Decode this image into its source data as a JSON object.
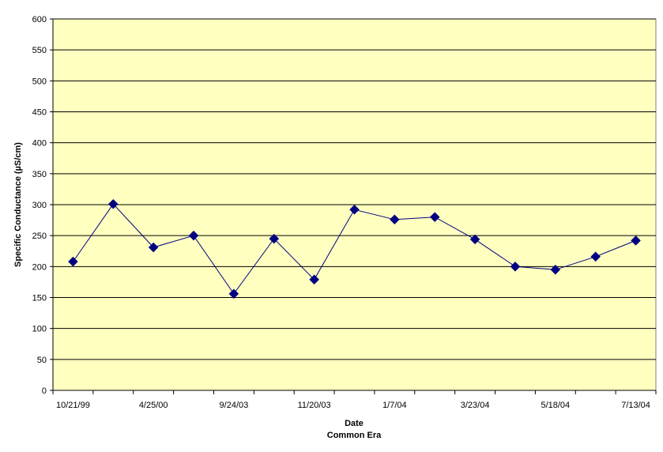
{
  "chart_data": {
    "type": "line",
    "xlabel": "Date",
    "xlabel_sub": "Common Era",
    "ylabel": "Specific Conductance (µS/cm)",
    "ylim": [
      0,
      600
    ],
    "y_ticks": [
      0,
      50,
      100,
      150,
      200,
      250,
      300,
      350,
      400,
      450,
      500,
      550,
      600
    ],
    "x_tick_labels": [
      "10/21/99",
      "4/25/00",
      "9/24/03",
      "11/20/03",
      "1/7/04",
      "3/23/04",
      "5/18/04",
      "7/13/04"
    ],
    "series": [
      {
        "values": [
          208,
          301,
          231,
          250,
          156,
          245,
          179,
          292,
          276,
          280,
          244,
          200,
          195,
          216,
          242
        ]
      }
    ],
    "grid": true,
    "legend": "none",
    "colors": {
      "plot_background": "#FFFFC0",
      "line": "#000080",
      "marker": "#000080",
      "gridline": "#000000"
    }
  }
}
